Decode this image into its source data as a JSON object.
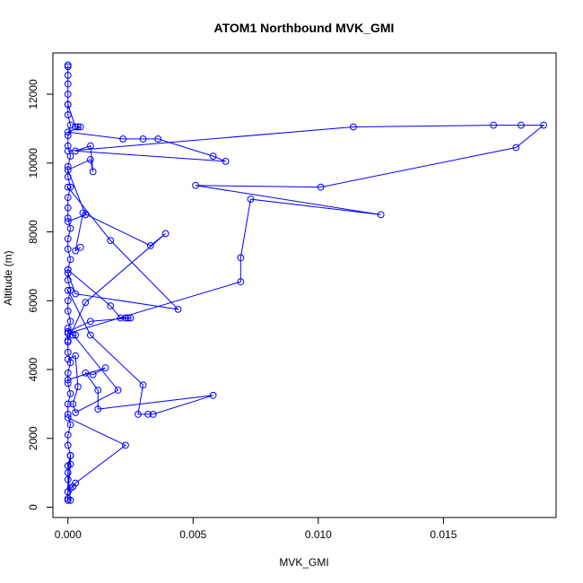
{
  "chart_data": {
    "type": "line",
    "title": "ATOM1 Northbound MVK_GMI",
    "xlabel": "MVK_GMI",
    "ylabel": "Altitude (m)",
    "xlim": [
      -0.0006,
      0.0195
    ],
    "ylim": [
      -300,
      13200
    ],
    "xticks": [
      0.0,
      0.005,
      0.01,
      0.015
    ],
    "xtick_labels": [
      "0.000",
      "0.005",
      "0.010",
      "0.015"
    ],
    "yticks": [
      0,
      2000,
      4000,
      6000,
      8000,
      10000,
      12000
    ],
    "ytick_labels": [
      "0",
      "2000",
      "4000",
      "6000",
      "8000",
      "10000",
      "12000"
    ],
    "series_color": "#0000ff",
    "marker": "open-circle",
    "grid": false,
    "legend": "none",
    "series": [
      {
        "points": [
          [
            0.0,
            200
          ],
          [
            0.0,
            450
          ],
          [
            0.0,
            800
          ],
          [
            0.0,
            1200
          ],
          [
            0.0001,
            1500
          ],
          [
            0.0,
            1800
          ],
          [
            0.0,
            2100
          ],
          [
            0.0001,
            2400
          ],
          [
            0.0,
            2700
          ],
          [
            0.0,
            3000
          ],
          [
            0.0001,
            3300
          ],
          [
            0.0,
            3600
          ],
          [
            0.0,
            3900
          ],
          [
            0.0001,
            4200
          ],
          [
            0.0,
            4500
          ],
          [
            0.0,
            4800
          ],
          [
            0.0,
            5100
          ],
          [
            0.0001,
            5400
          ],
          [
            0.0,
            5700
          ],
          [
            0.0,
            6000
          ],
          [
            0.0001,
            6300
          ],
          [
            0.0,
            6600
          ],
          [
            0.0,
            6900
          ],
          [
            0.0001,
            7200
          ],
          [
            0.0,
            7500
          ],
          [
            0.0,
            7800
          ],
          [
            0.0001,
            8100
          ],
          [
            0.0,
            8400
          ],
          [
            0.0,
            8700
          ],
          [
            0.0,
            9000
          ],
          [
            0.0001,
            9300
          ],
          [
            0.0,
            9600
          ],
          [
            0.0,
            9900
          ],
          [
            0.0001,
            10200
          ],
          [
            0.0,
            10500
          ],
          [
            0.0,
            10800
          ],
          [
            0.0001,
            11100
          ],
          [
            0.0,
            11400
          ],
          [
            0.0,
            11700
          ],
          [
            0.0,
            12000
          ],
          [
            0.0,
            12300
          ],
          [
            0.0,
            12550
          ],
          [
            0.0,
            12800
          ],
          [
            0.0,
            12850
          ]
        ]
      },
      {
        "points": [
          [
            0.0,
            11700
          ],
          [
            0.0003,
            11050
          ],
          [
            0.0004,
            11050
          ],
          [
            0.0005,
            11050
          ],
          [
            0.0,
            10900
          ],
          [
            0.0022,
            10700
          ],
          [
            0.003,
            10700
          ],
          [
            0.0036,
            10700
          ],
          [
            0.0058,
            10200
          ],
          [
            0.0063,
            10050
          ],
          [
            0.0003,
            10350
          ],
          [
            0.0009,
            10500
          ],
          [
            0.001,
            9750
          ],
          [
            0.0009,
            10100
          ],
          [
            0.0,
            9800
          ],
          [
            0.0007,
            8500
          ],
          [
            0.0,
            8300
          ]
        ]
      },
      {
        "points": [
          [
            0.0,
            10350
          ],
          [
            0.0114,
            11050
          ],
          [
            0.017,
            11100
          ],
          [
            0.0181,
            11100
          ],
          [
            0.019,
            11100
          ],
          [
            0.0179,
            10450
          ],
          [
            0.0101,
            9300
          ],
          [
            0.0051,
            9350
          ],
          [
            0.0125,
            8500
          ],
          [
            0.0073,
            8950
          ],
          [
            0.0069,
            7250
          ],
          [
            0.0069,
            6550
          ],
          [
            0.0,
            5050
          ]
        ]
      },
      {
        "points": [
          [
            0.0,
            9300
          ],
          [
            0.0017,
            7750
          ],
          [
            0.0044,
            5750
          ],
          [
            0.0003,
            6200
          ],
          [
            0.0,
            6800
          ]
        ]
      },
      {
        "points": [
          [
            0.0005,
            7550
          ],
          [
            0.0003,
            7450
          ],
          [
            0.0006,
            8550
          ],
          [
            0.0033,
            7600
          ],
          [
            0.0039,
            7950
          ],
          [
            0.0007,
            5950
          ],
          [
            0.0,
            4850
          ]
        ]
      },
      {
        "points": [
          [
            0.0,
            6900
          ],
          [
            0.0017,
            5850
          ],
          [
            0.0021,
            5500
          ],
          [
            0.0023,
            5500
          ],
          [
            0.0024,
            5500
          ],
          [
            0.0025,
            5500
          ],
          [
            0.0009,
            5400
          ],
          [
            0.0,
            5100
          ],
          [
            0.0002,
            5000
          ],
          [
            0.0003,
            5000
          ]
        ]
      },
      {
        "points": [
          [
            0.0,
            6300
          ],
          [
            0.0009,
            5000
          ],
          [
            0.003,
            3550
          ],
          [
            0.0028,
            2700
          ],
          [
            0.0032,
            2700
          ],
          [
            0.0034,
            2700
          ],
          [
            0.0058,
            3250
          ],
          [
            0.0012,
            2850
          ],
          [
            0.0012,
            3400
          ],
          [
            0.0007,
            3900
          ],
          [
            0.001,
            3850
          ],
          [
            0.0015,
            4050
          ],
          [
            0.0,
            3700
          ]
        ]
      },
      {
        "points": [
          [
            0.0,
            5200
          ],
          [
            0.002,
            3400
          ],
          [
            0.0003,
            2750
          ],
          [
            0.0002,
            3000
          ],
          [
            0.0004,
            3500
          ],
          [
            0.0003,
            4400
          ],
          [
            0.0,
            4300
          ]
        ]
      },
      {
        "points": [
          [
            0.0,
            2600
          ],
          [
            0.0023,
            1800
          ],
          [
            0.0003,
            700
          ],
          [
            0.0002,
            600
          ],
          [
            0.0001,
            550
          ],
          [
            0.0,
            450
          ],
          [
            0.0001,
            1250
          ],
          [
            0.0001,
            1500
          ],
          [
            0.0,
            1000
          ],
          [
            0.0001,
            200
          ],
          [
            0.0,
            250
          ]
        ]
      }
    ]
  }
}
